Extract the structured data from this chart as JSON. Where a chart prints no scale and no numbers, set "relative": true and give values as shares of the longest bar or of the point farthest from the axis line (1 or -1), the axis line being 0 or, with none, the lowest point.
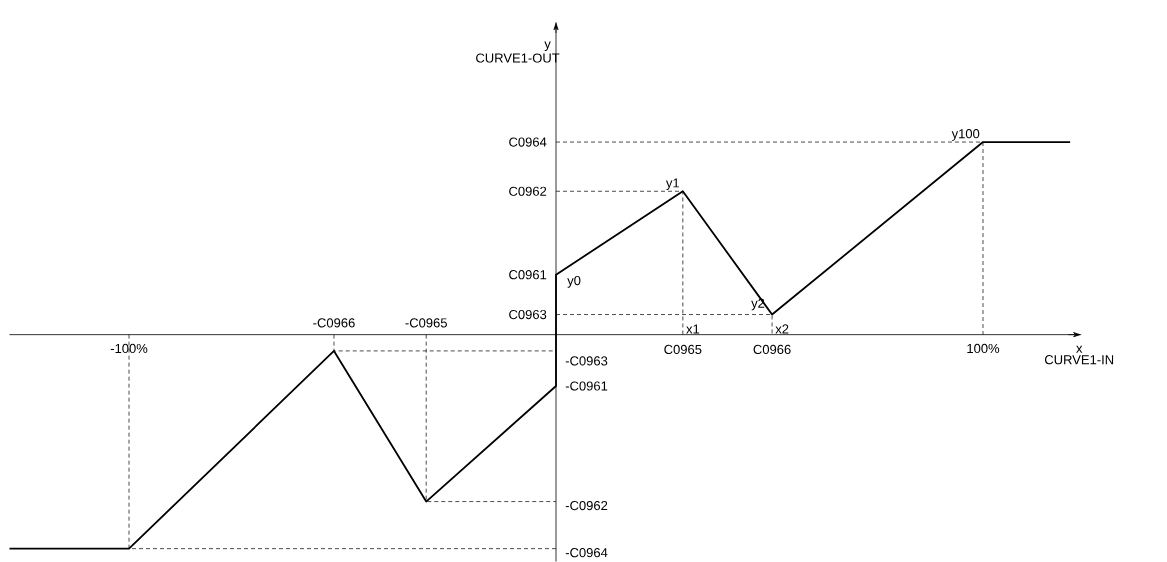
{
  "chart_data": {
    "type": "line",
    "relative": true,
    "xlabel": "x",
    "xlim": [
      -128,
      123
    ],
    "xticks": [
      {
        "value": -100,
        "label": "-100%"
      },
      {
        "value": 100,
        "label": "100%"
      }
    ],
    "series": [
      {
        "color": "#000000",
        "line_style": "solid",
        "x": [
          -128,
          -100,
          -52,
          -30.4,
          0,
          0,
          29.7,
          50.6,
          100,
          120.4
        ],
        "values": [
          -1,
          -1,
          -0.076,
          -0.78,
          -0.24,
          0.28,
          0.67,
          0.094,
          0.9,
          0.9
        ]
      },
      {
        "color": "#000000",
        "line_style": "dashed",
        "x": [
          -100,
          -100,
          0
        ],
        "values": [
          0,
          -1,
          -1
        ]
      },
      {
        "color": "#000000",
        "line_style": "dashed",
        "x": [
          -52,
          -52,
          0
        ],
        "values": [
          0,
          -0.076,
          -0.076
        ]
      },
      {
        "color": "#000000",
        "line_style": "dashed",
        "x": [
          -30.4,
          -30.4,
          0
        ],
        "values": [
          0,
          -0.78,
          -0.78
        ]
      },
      {
        "color": "#000000",
        "line_style": "dashed",
        "x": [
          0,
          50.6,
          50.6
        ],
        "values": [
          0.094,
          0.094,
          0
        ]
      },
      {
        "color": "#000000",
        "line_style": "dashed",
        "x": [
          0,
          29.7,
          29.7
        ],
        "values": [
          0.67,
          0.67,
          0
        ]
      },
      {
        "color": "#000000",
        "line_style": "dashed",
        "x": [
          0,
          100,
          100
        ],
        "values": [
          0.9,
          0.9,
          0
        ]
      }
    ],
    "annotations": [
      {
        "text": "C0964",
        "x": 0,
        "y": 0.9
      },
      {
        "text": "C0962",
        "x": 0,
        "y": 0.67
      },
      {
        "text": "C0961",
        "x": 0,
        "y": 0.28
      },
      {
        "text": "C0963",
        "x": 0,
        "y": 0.094
      },
      {
        "text": "-C0963",
        "x": 0,
        "y": -0.076
      },
      {
        "text": "-C0961",
        "x": 0,
        "y": -0.24
      },
      {
        "text": "-C0962",
        "x": 0,
        "y": -0.78
      },
      {
        "text": "-C0964",
        "x": 0,
        "y": -1
      },
      {
        "text": "-C0966",
        "x": -52,
        "y": 0
      },
      {
        "text": "-C0965",
        "x": -30.4,
        "y": 0
      },
      {
        "text": "C0965",
        "x": 29.7,
        "y": 0
      },
      {
        "text": "C0966",
        "x": 50.6,
        "y": 0
      },
      {
        "text": "y0",
        "x": 0,
        "y": 0.28
      },
      {
        "text": "y1",
        "x": 29.7,
        "y": 0.67
      },
      {
        "text": "y2",
        "x": 50.6,
        "y": 0.094
      },
      {
        "text": "y100",
        "x": 100,
        "y": 0.9
      },
      {
        "text": "x1",
        "x": 29.7,
        "y": 0
      },
      {
        "text": "x2",
        "x": 50.6,
        "y": 0
      },
      "CURVE1-IN",
      "y",
      "CURVE1-OUT"
    ]
  }
}
